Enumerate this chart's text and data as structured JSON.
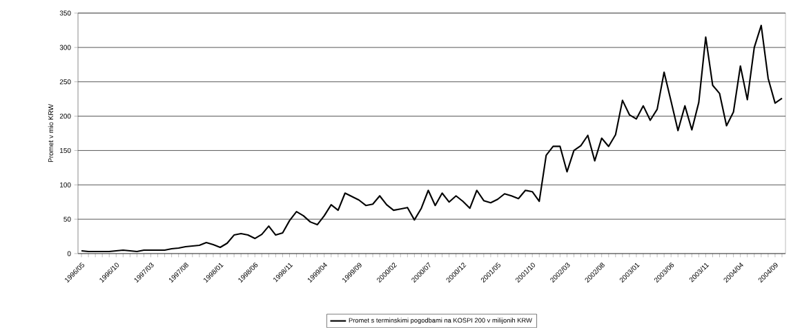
{
  "chart_data": {
    "type": "line",
    "ylabel": "Promet v mio KRW",
    "categories": [
      "1996/05",
      null,
      null,
      null,
      null,
      "1996/10",
      null,
      null,
      null,
      null,
      "1997/03",
      null,
      null,
      null,
      null,
      "1997/08",
      null,
      null,
      null,
      null,
      "1998/01",
      null,
      null,
      null,
      null,
      "1998/06",
      null,
      null,
      null,
      null,
      "1998/11",
      null,
      null,
      null,
      null,
      "1999/04",
      null,
      null,
      null,
      null,
      "1999/09",
      null,
      null,
      null,
      null,
      "2000/02",
      null,
      null,
      null,
      null,
      "2000/07",
      null,
      null,
      null,
      null,
      "2000/12",
      null,
      null,
      null,
      null,
      "2001/05",
      null,
      null,
      null,
      null,
      "2001/10",
      null,
      null,
      null,
      null,
      "2002/03",
      null,
      null,
      null,
      null,
      "2002/08",
      null,
      null,
      null,
      null,
      "2003/01",
      null,
      null,
      null,
      null,
      "2003/06",
      null,
      null,
      null,
      null,
      "2003/11",
      null,
      null,
      null,
      null,
      "2004/04",
      null,
      null,
      null,
      null,
      "2004/09",
      null
    ],
    "series": [
      {
        "name": "Promet s terminskimi pogodbami na KOSPI 200 v milijonih KRW",
        "color": "#000000",
        "values": [
          4,
          3,
          3,
          3,
          3,
          4,
          5,
          4,
          3,
          5,
          5,
          5,
          5,
          7,
          8,
          10,
          11,
          12,
          16,
          13,
          9,
          15,
          27,
          29,
          27,
          22,
          28,
          40,
          27,
          30,
          48,
          61,
          55,
          46,
          42,
          55,
          71,
          63,
          88,
          83,
          78,
          70,
          72,
          84,
          71,
          63,
          65,
          67,
          49,
          66,
          92,
          70,
          88,
          75,
          84,
          76,
          66,
          92,
          77,
          74,
          79,
          87,
          84,
          80,
          92,
          90,
          76,
          143,
          156,
          156,
          119,
          150,
          157,
          172,
          135,
          168,
          156,
          173,
          223,
          202,
          196,
          215,
          194,
          210,
          264,
          222,
          179,
          215,
          180,
          220,
          315,
          245,
          233,
          186,
          206,
          273,
          224,
          300,
          332,
          255,
          219,
          226
        ]
      }
    ],
    "ylim": [
      0,
      350
    ],
    "yticks": [
      0,
      50,
      100,
      150,
      200,
      250,
      300,
      350
    ],
    "grid": "y",
    "legend": "bottom",
    "marker": "none",
    "line_style": "solid"
  }
}
